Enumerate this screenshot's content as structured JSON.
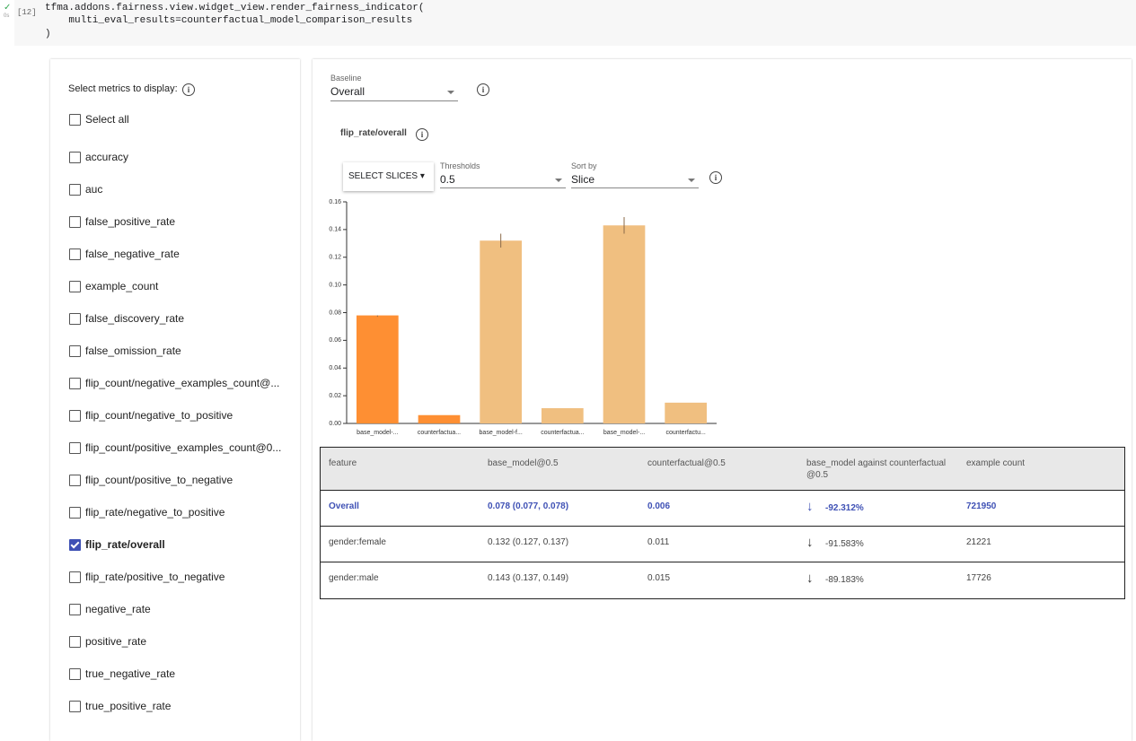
{
  "code_cell": {
    "execution_count": "[12]",
    "run_time": "0s",
    "lines": [
      "tfma.addons.fairness.view.widget_view.render_fairness_indicator(",
      "    multi_eval_results=counterfactual_model_comparison_results",
      ")"
    ]
  },
  "metrics_panel": {
    "heading": "Select metrics to display:",
    "select_all": "Select all",
    "metrics": [
      {
        "label": "accuracy",
        "checked": false
      },
      {
        "label": "auc",
        "checked": false
      },
      {
        "label": "false_positive_rate",
        "checked": false
      },
      {
        "label": "false_negative_rate",
        "checked": false
      },
      {
        "label": "example_count",
        "checked": false
      },
      {
        "label": "false_discovery_rate",
        "checked": false
      },
      {
        "label": "false_omission_rate",
        "checked": false
      },
      {
        "label": "flip_count/negative_examples_count@...",
        "checked": false
      },
      {
        "label": "flip_count/negative_to_positive",
        "checked": false
      },
      {
        "label": "flip_count/positive_examples_count@0...",
        "checked": false
      },
      {
        "label": "flip_count/positive_to_negative",
        "checked": false
      },
      {
        "label": "flip_rate/negative_to_positive",
        "checked": false
      },
      {
        "label": "flip_rate/overall",
        "checked": true
      },
      {
        "label": "flip_rate/positive_to_negative",
        "checked": false
      },
      {
        "label": "negative_rate",
        "checked": false
      },
      {
        "label": "positive_rate",
        "checked": false
      },
      {
        "label": "true_negative_rate",
        "checked": false
      },
      {
        "label": "true_positive_rate",
        "checked": false
      }
    ]
  },
  "fairness_panel": {
    "baseline_label": "Baseline",
    "baseline_value": "Overall",
    "metric_title": "flip_rate/overall",
    "select_slices": "SELECT SLICES",
    "thresholds_label": "Thresholds",
    "thresholds_value": "0.5",
    "sort_label": "Sort by",
    "sort_value": "Slice"
  },
  "chart_data": {
    "type": "bar",
    "categories": [
      "base_model-...",
      "counterfactua...",
      "base_model-f...",
      "counterfactua...",
      "base_model-...",
      "counterfactu..."
    ],
    "values": [
      0.078,
      0.006,
      0.132,
      0.011,
      0.143,
      0.015
    ],
    "ci_low": [
      0.077,
      null,
      0.127,
      null,
      0.137,
      null
    ],
    "ci_high": [
      0.078,
      null,
      0.137,
      null,
      0.149,
      null
    ],
    "colors": [
      "#fe8f33",
      "#fe8f33",
      "#f0bf80",
      "#f0bf80",
      "#f0bf80",
      "#f0bf80"
    ],
    "ylim": [
      0,
      0.16
    ],
    "yticks": [
      {
        "value": 0,
        "label": "0.00"
      },
      0.02,
      0.04,
      0.06,
      0.08,
      {
        "value": 0.1,
        "label": "0.10"
      },
      0.12,
      0.14,
      0.16
    ]
  },
  "table": {
    "header": [
      "feature",
      "base_model@0.5",
      "counterfactual@0.5",
      "base_model against counterfactual @0.5",
      "example count"
    ],
    "rows": [
      {
        "cells": [
          "Overall",
          "0.078 (0.077, 0.078)",
          "0.006",
          "-92.312%",
          "721950"
        ],
        "highlight": true
      },
      {
        "cells": [
          "gender:female",
          "0.132 (0.127, 0.137)",
          "0.011",
          "-91.583%",
          "21221"
        ],
        "highlight": false
      },
      {
        "cells": [
          "gender:male",
          "0.143 (0.137, 0.149)",
          "0.015",
          "-89.183%",
          "17726"
        ],
        "highlight": false
      }
    ]
  }
}
